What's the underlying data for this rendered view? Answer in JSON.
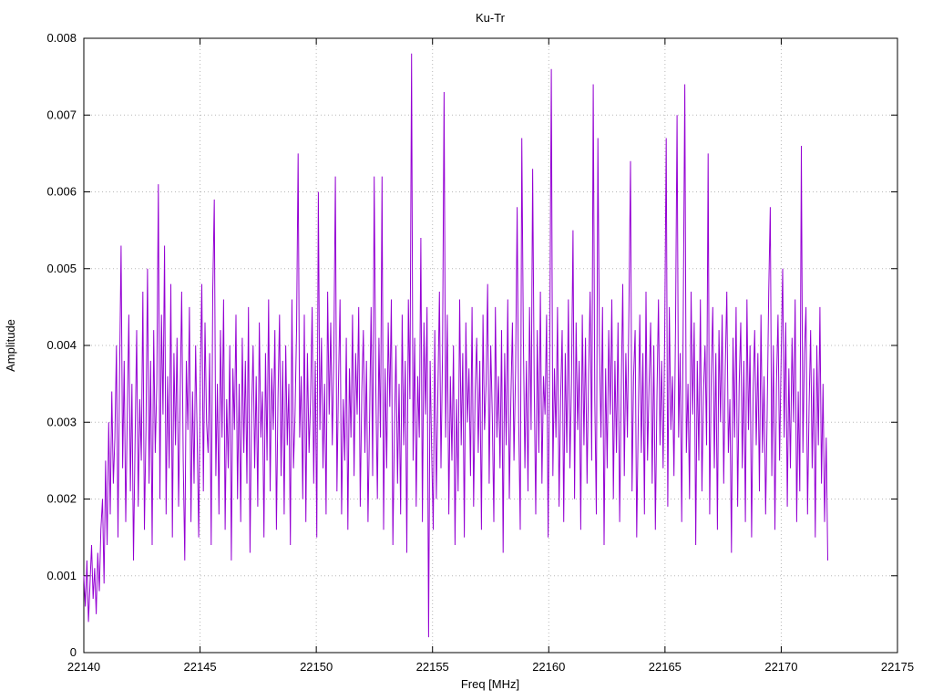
{
  "chart_data": {
    "type": "line",
    "title": "Ku-Tr",
    "xlabel": "Freq [MHz]",
    "ylabel": "Amplitude",
    "xlim": [
      22140,
      22175
    ],
    "ylim": [
      0,
      0.008
    ],
    "x_ticks": [
      22140,
      22145,
      22150,
      22155,
      22160,
      22165,
      22170,
      22175
    ],
    "x_tick_labels": [
      "22140",
      "22145",
      "22150",
      "22155",
      "22160",
      "22165",
      "22170",
      "22175"
    ],
    "y_ticks": [
      0,
      0.001,
      0.002,
      0.003,
      0.004,
      0.005,
      0.006,
      0.007,
      0.008
    ],
    "y_tick_labels": [
      "0",
      "0.001",
      "0.002",
      "0.003",
      "0.004",
      "0.005",
      "0.006",
      "0.007",
      "0.008"
    ],
    "grid": true,
    "legend_position": "none",
    "line_color": "#9400d3",
    "grid_color": "#b8b8b8",
    "series": [
      {
        "name": "Ku-Tr",
        "x_start": 22140,
        "x_end": 22172,
        "amplitude_scale": 0.0001,
        "values": [
          10,
          6,
          12,
          4,
          9,
          14,
          7,
          11,
          5,
          13,
          8,
          16,
          20,
          9,
          25,
          14,
          30,
          18,
          34,
          22,
          28,
          40,
          15,
          36,
          53,
          24,
          38,
          17,
          31,
          44,
          21,
          35,
          12,
          27,
          42,
          19,
          33,
          25,
          47,
          16,
          29,
          50,
          22,
          38,
          14,
          42,
          26,
          35,
          61,
          20,
          44,
          31,
          53,
          18,
          36,
          24,
          48,
          15,
          39,
          27,
          41,
          19,
          33,
          47,
          25,
          12,
          38,
          29,
          45,
          17,
          34,
          22,
          40,
          28,
          15,
          36,
          48,
          21,
          43,
          30,
          26,
          39,
          14,
          47,
          59,
          23,
          35,
          18,
          42,
          28,
          46,
          16,
          33,
          24,
          40,
          12,
          37,
          29,
          44,
          20,
          35,
          17,
          41,
          26,
          38,
          22,
          45,
          13,
          31,
          40,
          24,
          36,
          19,
          43,
          28,
          34,
          15,
          39,
          25,
          46,
          21,
          37,
          29,
          42,
          16,
          33,
          44,
          23,
          38,
          18,
          40,
          27,
          35,
          14,
          46,
          24,
          31,
          42,
          65,
          28,
          36,
          20,
          44,
          17,
          39,
          26,
          33,
          45,
          22,
          38,
          15,
          60,
          29,
          41,
          24,
          35,
          18,
          47,
          31,
          43,
          27,
          39,
          62,
          21,
          35,
          46,
          18,
          33,
          25,
          41,
          16,
          37,
          28,
          44,
          23,
          39,
          31,
          45,
          19,
          34,
          42,
          26,
          38,
          17,
          30,
          45,
          23,
          62,
          35,
          20,
          41,
          28,
          62,
          16,
          37,
          24,
          43,
          32,
          46,
          14,
          29,
          40,
          22,
          35,
          18,
          44,
          27,
          38,
          13,
          46,
          33,
          78,
          25,
          41,
          19,
          36,
          28,
          54,
          17,
          43,
          31,
          45,
          2,
          38,
          26,
          16,
          42,
          20,
          34,
          47,
          24,
          39,
          73,
          28,
          44,
          18,
          36,
          25,
          40,
          14,
          33,
          21,
          46,
          27,
          39,
          15,
          43,
          30,
          37,
          23,
          45,
          19,
          34,
          41,
          26,
          38,
          16,
          44,
          29,
          35,
          48,
          22,
          40,
          31,
          17,
          45,
          28,
          36,
          24,
          42,
          13,
          39,
          27,
          46,
          20,
          33,
          43,
          25,
          37,
          58,
          30,
          16,
          67,
          41,
          24,
          38,
          21,
          45,
          29,
          63,
          35,
          18,
          42,
          26,
          47,
          22,
          36,
          31,
          44,
          15,
          40,
          76,
          23,
          37,
          28,
          45,
          19,
          33,
          42,
          17,
          39,
          26,
          46,
          24,
          35,
          55,
          20,
          43,
          29,
          38,
          16,
          44,
          27,
          41,
          22,
          36,
          47,
          25,
          74,
          33,
          18,
          67,
          40,
          28,
          45,
          14,
          37,
          24,
          42,
          31,
          46,
          20,
          38,
          26,
          43,
          17,
          34,
          48,
          23,
          39,
          28,
          45,
          64,
          21,
          36,
          42,
          15,
          30,
          44,
          26,
          39,
          18,
          47,
          25,
          35,
          43,
          22,
          40,
          16,
          33,
          46,
          27,
          38,
          24,
          41,
          67,
          19,
          45,
          29,
          36,
          23,
          42,
          70,
          28,
          39,
          17,
          44,
          74,
          26,
          35,
          20,
          47,
          31,
          43,
          14,
          38,
          25,
          46,
          21,
          34,
          40,
          27,
          65,
          18,
          36,
          45,
          24,
          39,
          16,
          42,
          30,
          44,
          22,
          37,
          47,
          26,
          33,
          13,
          41,
          28,
          45,
          19,
          35,
          43,
          24,
          38,
          17,
          46,
          29,
          40,
          15,
          34,
          42,
          27,
          39,
          21,
          44,
          26,
          36,
          18,
          31,
          47,
          58,
          23,
          40,
          16,
          35,
          44,
          25,
          38,
          50,
          28,
          43,
          19,
          37,
          24,
          41,
          30,
          46,
          17,
          34,
          21,
          66,
          26,
          39,
          45,
          18,
          32,
          42,
          24,
          37,
          15,
          40,
          27,
          45,
          22,
          35,
          17,
          28,
          12
        ]
      }
    ]
  }
}
